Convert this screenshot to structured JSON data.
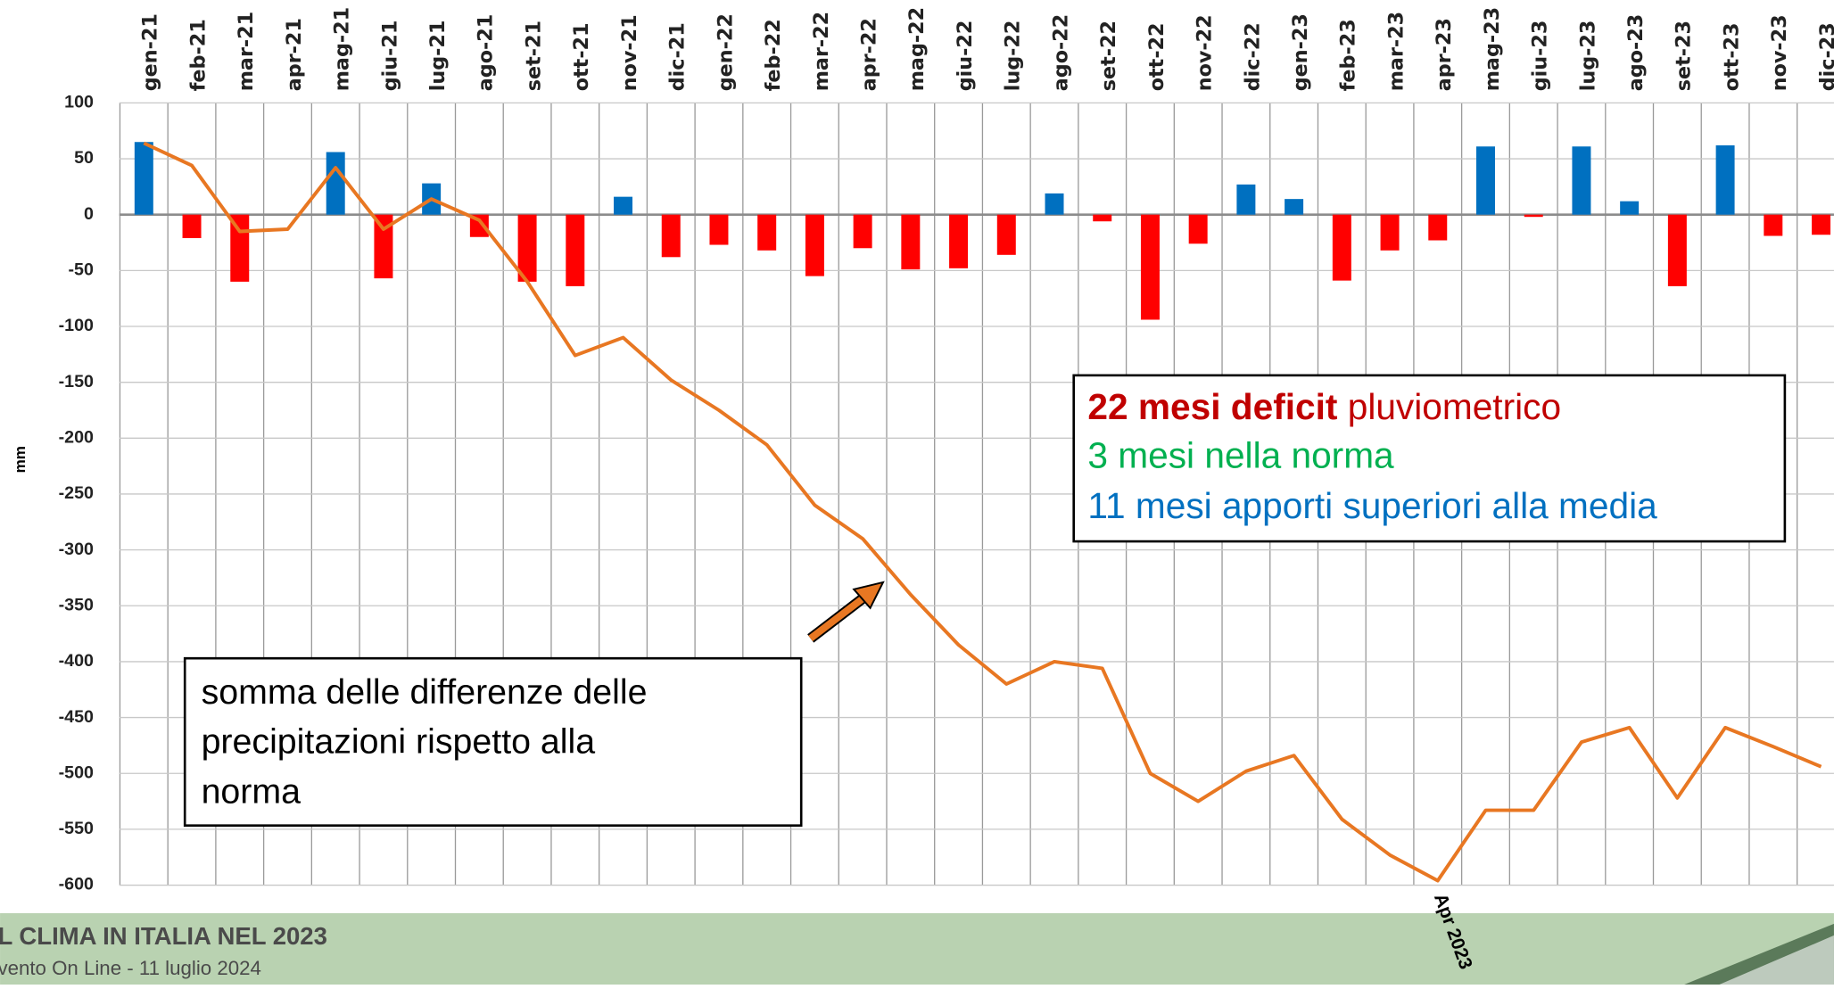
{
  "chart_data": {
    "type": "combo",
    "ylabel": "mm",
    "categories": [
      "gen-21",
      "feb-21",
      "mar-21",
      "apr-21",
      "mag-21",
      "giu-21",
      "lug-21",
      "ago-21",
      "set-21",
      "ott-21",
      "nov-21",
      "dic-21",
      "gen-22",
      "feb-22",
      "mar-22",
      "apr-22",
      "mag-22",
      "giu-22",
      "lug-22",
      "ago-22",
      "set-22",
      "ott-22",
      "nov-22",
      "dic-22",
      "gen-23",
      "feb-23",
      "mar-23",
      "apr-23",
      "mag-23",
      "giu-23",
      "lug-23",
      "ago-23",
      "set-23",
      "ott-23",
      "nov-23",
      "dic-23"
    ],
    "series": [
      {
        "type": "bar",
        "colors": {
          "positive": "#0070c0",
          "negative": "#ff0000"
        },
        "values": [
          65,
          -21,
          -60,
          0,
          56,
          -57,
          28,
          -20,
          -60,
          -64,
          16,
          -38,
          -27,
          -32,
          -55,
          -30,
          -49,
          -48,
          -36,
          19,
          -6,
          -94,
          -26,
          27,
          14,
          -59,
          -32,
          -23,
          61,
          -2,
          61,
          12,
          -64,
          62,
          -19,
          -18
        ]
      },
      {
        "type": "line",
        "color": "#e87722",
        "values": [
          64,
          44,
          -15,
          -13,
          42,
          -13,
          14,
          -5,
          -60,
          -126,
          -110,
          -148,
          -175,
          -206,
          -260,
          -290,
          -340,
          -385,
          -420,
          -400,
          -406,
          -500,
          -525,
          -498,
          -484,
          -541,
          -573,
          -596,
          -533,
          -533,
          -472,
          -459,
          -522,
          -459,
          -476,
          -494
        ]
      }
    ],
    "ylim": [
      -600,
      100
    ],
    "yticks": [
      100,
      50,
      0,
      -50,
      -100,
      -150,
      -200,
      -250,
      -300,
      -350,
      -400,
      -450,
      -500,
      -550,
      -600
    ],
    "grid": true,
    "annotations": {
      "sum_box": [
        "somma delle differenze delle",
        "precipitazioni rispetto alla",
        "norma"
      ],
      "marker": "Apr 2023",
      "info_bold": "22 mesi deficit",
      "info_rest": "pluviometrico",
      "info_normal": "3 mesi nella norma",
      "info_above": "11 mesi apporti superiori alla media"
    }
  },
  "footer": {
    "title": "L CLIMA IN ITALIA NEL 2023",
    "subtitle": "vento On Line - 11 luglio 2024"
  }
}
